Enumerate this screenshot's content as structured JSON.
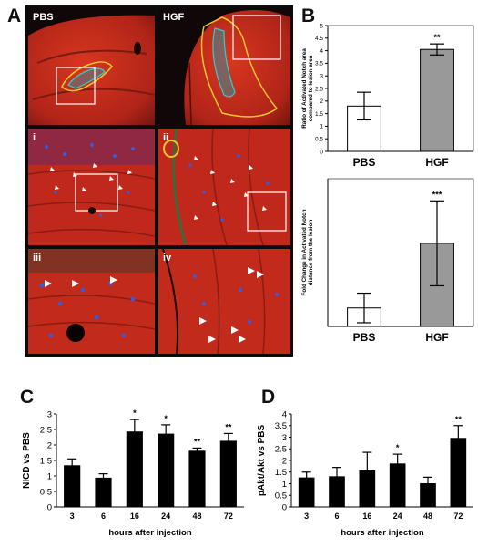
{
  "panels": {
    "A": "A",
    "B": "B",
    "C": "C",
    "D": "D"
  },
  "micrographs": {
    "pbs_label": "PBS",
    "hgf_label": "HGF",
    "inset_labels": [
      "i",
      "ii",
      "iii",
      "iv"
    ],
    "colors": {
      "tissue": "#c8281e",
      "nuclei": "#2840c8",
      "outline_yellow": "#e8c830",
      "outline_cyan": "#30d0c8",
      "box": "#ffffff"
    }
  },
  "chart_data": [
    {
      "id": "B-top",
      "type": "bar",
      "categories": [
        "PBS",
        "HGF"
      ],
      "values": [
        1.8,
        4.05
      ],
      "errors": [
        0.55,
        0.22
      ],
      "significance": [
        "",
        "**"
      ],
      "ylabel": "Ratio of Activated Notch area compared to lesion area",
      "ylim": [
        0,
        5
      ],
      "yticks": [
        "0",
        "0.5",
        "1",
        "1.5",
        "2",
        "2.5",
        "3",
        "3.5",
        "4",
        "4.5",
        "5"
      ],
      "bar_colors": [
        "#ffffff",
        "#999999"
      ]
    },
    {
      "id": "B-bottom",
      "type": "bar",
      "categories": [
        "PBS",
        "HGF"
      ],
      "values": [
        1.0,
        4.5
      ],
      "errors": [
        0.8,
        2.3
      ],
      "significance": [
        "",
        "***"
      ],
      "ylabel": "Fold Change in Activated Notch distance from the lesion",
      "ylim": [
        0,
        8
      ],
      "yticks": [],
      "bar_colors": [
        "#ffffff",
        "#999999"
      ]
    },
    {
      "id": "C",
      "type": "bar",
      "categories": [
        "3",
        "6",
        "16",
        "24",
        "48",
        "72"
      ],
      "values": [
        1.33,
        0.93,
        2.42,
        2.35,
        1.8,
        2.12
      ],
      "errors": [
        0.22,
        0.14,
        0.4,
        0.3,
        0.1,
        0.25
      ],
      "significance": [
        "",
        "",
        "*",
        "*",
        "**",
        "**"
      ],
      "xlabel": "hours after injection",
      "ylabel": "NICD vs PBS",
      "ylim": [
        0,
        3
      ],
      "yticks": [
        "0",
        "0.5",
        "1",
        "1.5",
        "2",
        "2.5",
        "3"
      ],
      "bar_colors": [
        "#000000"
      ]
    },
    {
      "id": "D",
      "type": "bar",
      "categories": [
        "3",
        "6",
        "16",
        "24",
        "48",
        "72"
      ],
      "values": [
        1.25,
        1.3,
        1.55,
        1.85,
        1.0,
        2.95
      ],
      "errors": [
        0.25,
        0.4,
        0.8,
        0.42,
        0.28,
        0.55
      ],
      "significance": [
        "",
        "",
        "",
        "*",
        "",
        "**"
      ],
      "xlabel": "hours after injection",
      "ylabel": "pAkt/Akt vs PBS",
      "ylim": [
        0,
        4
      ],
      "yticks": [
        "0",
        "0.5",
        "1",
        "1.5",
        "2",
        "2.5",
        "3",
        "3.5",
        "4"
      ],
      "bar_colors": [
        "#000000"
      ]
    }
  ]
}
